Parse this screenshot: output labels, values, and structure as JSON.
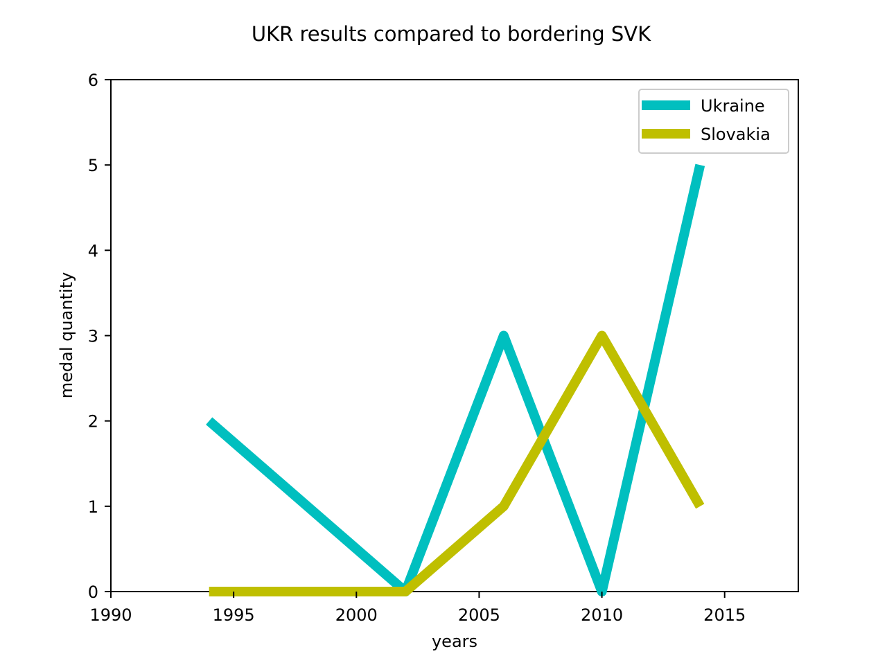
{
  "chart_data": {
    "type": "line",
    "title": "UKR results compared to bordering SVK",
    "xlabel": "years",
    "ylabel": "medal quantity",
    "xlim": [
      1990,
      2018
    ],
    "ylim": [
      0,
      6
    ],
    "xticks": [
      1990,
      1995,
      2000,
      2005,
      2010,
      2015
    ],
    "yticks": [
      0,
      1,
      2,
      3,
      4,
      5,
      6
    ],
    "grid": false,
    "legend_position": "top-right",
    "series": [
      {
        "name": "Ukraine",
        "color": "#00bfbf",
        "x": [
          1994,
          2002,
          2006,
          2010,
          2014
        ],
        "y": [
          2,
          0,
          3,
          0,
          5
        ]
      },
      {
        "name": "Slovakia",
        "color": "#bfbf00",
        "x": [
          1994,
          1998,
          2002,
          2006,
          2010,
          2014
        ],
        "y": [
          0,
          0,
          0,
          1,
          3,
          1
        ]
      }
    ]
  }
}
